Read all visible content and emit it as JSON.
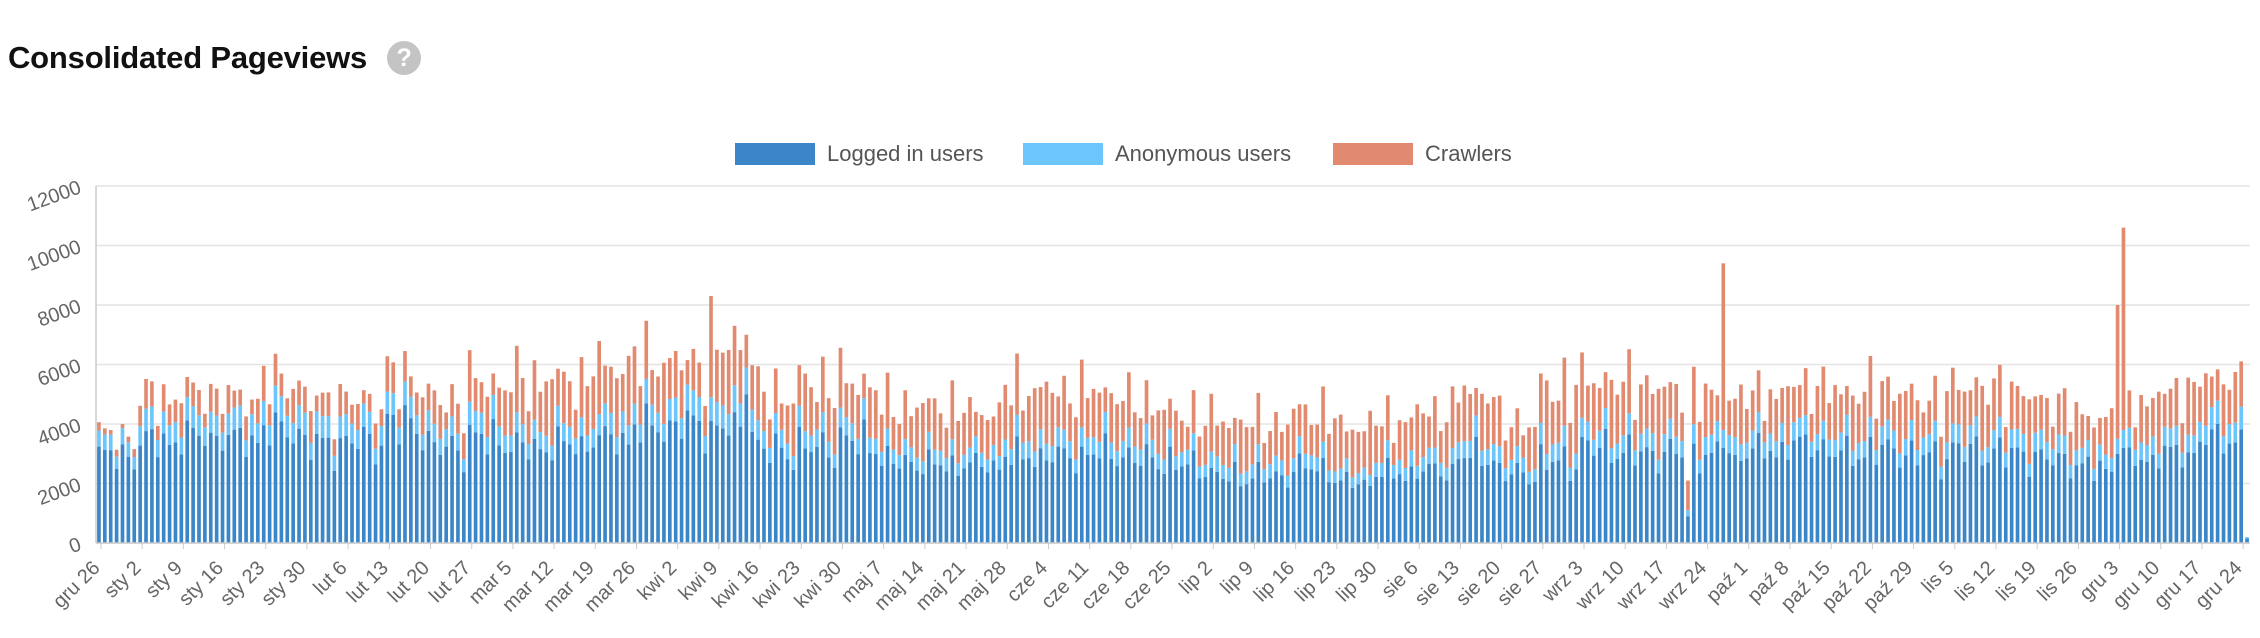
{
  "header": {
    "title": "Consolidated Pageviews",
    "help_icon": "question-circle-icon",
    "help_glyph": "?"
  },
  "chart_data": {
    "type": "bar",
    "stacked": true,
    "title": "",
    "xlabel": "",
    "ylabel": "",
    "ylim": [
      0,
      12000
    ],
    "yticks": [
      0,
      2000,
      4000,
      6000,
      8000,
      10000,
      12000
    ],
    "grid": true,
    "legend_position": "top-center",
    "start_label": "gru 26",
    "days": 366,
    "x_tick_labels": [
      "gru 26",
      "sty 2",
      "sty 9",
      "sty 16",
      "sty 23",
      "sty 30",
      "lut 6",
      "lut 13",
      "lut 20",
      "lut 27",
      "mar 5",
      "mar 12",
      "mar 19",
      "mar 26",
      "kwi 2",
      "kwi 9",
      "kwi 16",
      "kwi 23",
      "kwi 30",
      "maj 7",
      "maj 14",
      "maj 21",
      "maj 28",
      "cze 4",
      "cze 11",
      "cze 18",
      "cze 25",
      "lip 2",
      "lip 9",
      "lip 16",
      "lip 23",
      "lip 30",
      "sie 6",
      "sie 13",
      "sie 20",
      "sie 27",
      "wrz 3",
      "wrz 10",
      "wrz 17",
      "wrz 24",
      "paź 1",
      "paź 8",
      "paź 15",
      "paź 22",
      "paź 29",
      "lis 5",
      "lis 12",
      "lis 19",
      "lis 26",
      "gru 3",
      "gru 10",
      "gru 17",
      "gru 24"
    ],
    "series": [
      {
        "name": "Logged in users",
        "color": "#3a86c8"
      },
      {
        "name": "Anonymous users",
        "color": "#6cc6fb"
      },
      {
        "name": "Crawlers",
        "color": "#e18a70"
      }
    ],
    "weekly_totals": [
      {
        "logged": 3000,
        "anon": 500,
        "crawl": 200
      },
      {
        "logged": 3500,
        "anon": 700,
        "crawl": 800
      },
      {
        "logged": 3700,
        "anon": 700,
        "crawl": 800
      },
      {
        "logged": 3600,
        "anon": 700,
        "crawl": 700
      },
      {
        "logged": 3900,
        "anon": 800,
        "crawl": 900
      },
      {
        "logged": 3400,
        "anon": 700,
        "crawl": 800
      },
      {
        "logged": 3500,
        "anon": 700,
        "crawl": 700
      },
      {
        "logged": 4100,
        "anon": 700,
        "crawl": 900
      },
      {
        "logged": 3300,
        "anon": 600,
        "crawl": 1000
      },
      {
        "logged": 3600,
        "anon": 700,
        "crawl": 1200
      },
      {
        "logged": 3300,
        "anon": 600,
        "crawl": 1700
      },
      {
        "logged": 3400,
        "anon": 600,
        "crawl": 1600
      },
      {
        "logged": 3600,
        "anon": 700,
        "crawl": 1800
      },
      {
        "logged": 4000,
        "anon": 700,
        "crawl": 1600
      },
      {
        "logged": 4100,
        "anon": 800,
        "crawl": 1300
      },
      {
        "logged": 4000,
        "anon": 800,
        "crawl": 1800
      },
      {
        "logged": 3200,
        "anon": 600,
        "crawl": 1300
      },
      {
        "logged": 3300,
        "anon": 600,
        "crawl": 1600
      },
      {
        "logged": 3500,
        "anon": 600,
        "crawl": 1400
      },
      {
        "logged": 2800,
        "anon": 500,
        "crawl": 1400
      },
      {
        "logged": 2700,
        "anon": 500,
        "crawl": 1500
      },
      {
        "logged": 2700,
        "anon": 500,
        "crawl": 1300
      },
      {
        "logged": 3000,
        "anon": 600,
        "crawl": 1700
      },
      {
        "logged": 3000,
        "anon": 600,
        "crawl": 1600
      },
      {
        "logged": 3100,
        "anon": 600,
        "crawl": 1500
      },
      {
        "logged": 2900,
        "anon": 600,
        "crawl": 1300
      },
      {
        "logged": 2700,
        "anon": 500,
        "crawl": 1200
      },
      {
        "logged": 2300,
        "anon": 500,
        "crawl": 1400
      },
      {
        "logged": 2300,
        "anon": 500,
        "crawl": 1300
      },
      {
        "logged": 2600,
        "anon": 500,
        "crawl": 1400
      },
      {
        "logged": 2100,
        "anon": 400,
        "crawl": 1500
      },
      {
        "logged": 2400,
        "anon": 500,
        "crawl": 1300
      },
      {
        "logged": 2500,
        "anon": 500,
        "crawl": 1500
      },
      {
        "logged": 3000,
        "anon": 600,
        "crawl": 1600
      },
      {
        "logged": 2400,
        "anon": 500,
        "crawl": 1200
      },
      {
        "logged": 2800,
        "anon": 600,
        "crawl": 1900
      },
      {
        "logged": 3300,
        "anon": 600,
        "crawl": 1700
      },
      {
        "logged": 3100,
        "anon": 600,
        "crawl": 1700
      },
      {
        "logged": 3100,
        "anon": 600,
        "crawl": 1500
      },
      {
        "logged": 3000,
        "anon": 600,
        "crawl": 1400
      },
      {
        "logged": 3200,
        "anon": 600,
        "crawl": 1300
      },
      {
        "logged": 3400,
        "anon": 600,
        "crawl": 1400
      },
      {
        "logged": 3100,
        "anon": 600,
        "crawl": 1500
      },
      {
        "logged": 3200,
        "anon": 600,
        "crawl": 1500
      },
      {
        "logged": 3000,
        "anon": 600,
        "crawl": 1300
      },
      {
        "logged": 3200,
        "anon": 600,
        "crawl": 1600
      },
      {
        "logged": 3100,
        "anon": 600,
        "crawl": 1500
      },
      {
        "logged": 2900,
        "anon": 600,
        "crawl": 1300
      },
      {
        "logged": 2600,
        "anon": 500,
        "crawl": 1200
      },
      {
        "logged": 2900,
        "anon": 600,
        "crawl": 1300
      },
      {
        "logged": 3100,
        "anon": 600,
        "crawl": 1500
      },
      {
        "logged": 3600,
        "anon": 700,
        "crawl": 1400
      },
      {
        "logged": 3500,
        "anon": 700,
        "crawl": 1200
      }
    ],
    "spikes": [
      {
        "day": 104,
        "logged": 4100,
        "anon": 800,
        "crawl": 3400
      },
      {
        "day": 108,
        "logged": 4400,
        "anon": 900,
        "crawl": 2000
      },
      {
        "day": 110,
        "logged": 5000,
        "anon": 900,
        "crawl": 1100
      },
      {
        "day": 276,
        "logged": 3200,
        "anon": 600,
        "crawl": 5600
      },
      {
        "day": 270,
        "logged": 900,
        "anon": 200,
        "crawl": 1000
      },
      {
        "day": 343,
        "logged": 3000,
        "anon": 500,
        "crawl": 4500
      },
      {
        "day": 344,
        "logged": 3200,
        "anon": 600,
        "crawl": 6800
      },
      {
        "day": 365,
        "logged": 150,
        "anon": 50,
        "crawl": 0
      }
    ]
  }
}
